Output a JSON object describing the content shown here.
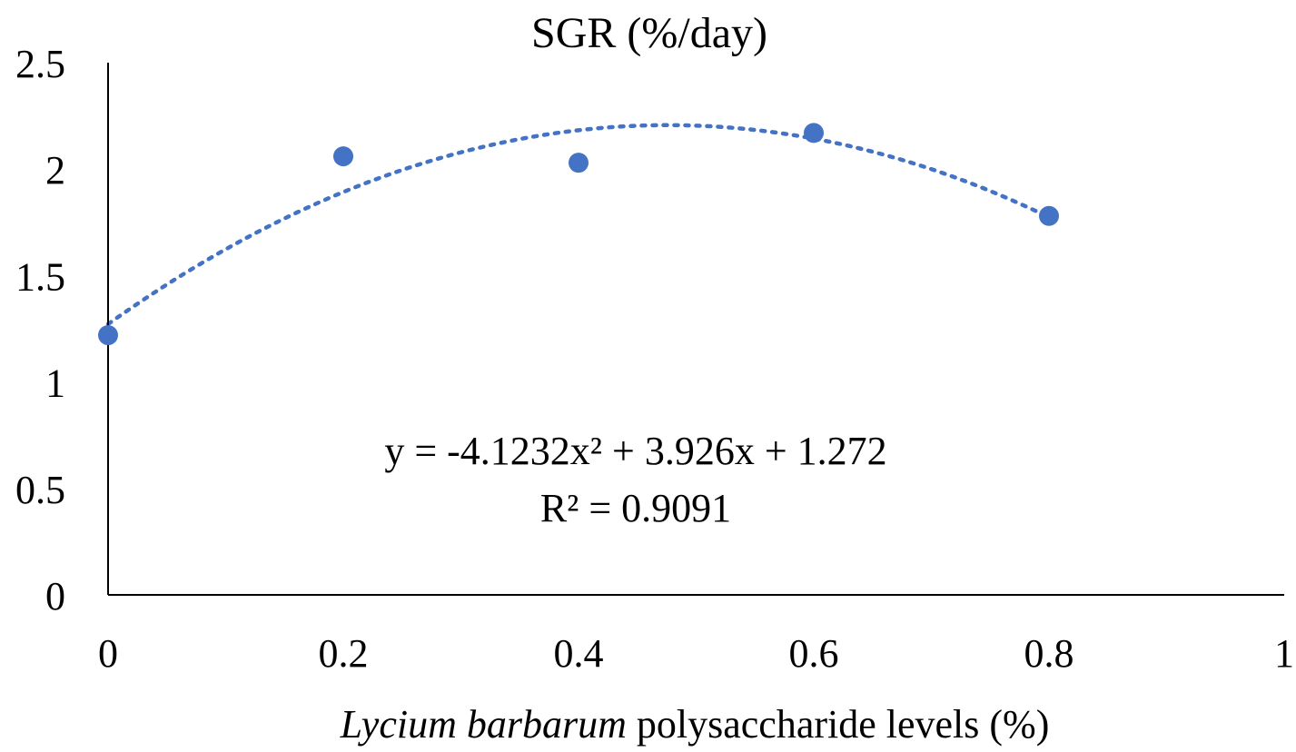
{
  "chart_data": {
    "type": "scatter",
    "title": "SGR (%/day)",
    "xlabel_italic": "Lycium barbarum",
    "xlabel_rest": " polysaccharide levels (%)",
    "xlim": [
      0,
      1
    ],
    "ylim": [
      0,
      2.5
    ],
    "x_ticks": [
      "0",
      "0.2",
      "0.4",
      "0.6",
      "0.8",
      "1"
    ],
    "y_ticks": [
      "0",
      "0.5",
      "1",
      "1.5",
      "2",
      "2.5"
    ],
    "grid": false,
    "legend": "none",
    "series": [
      {
        "x": [
          0,
          0.2,
          0.4,
          0.6,
          0.8
        ],
        "y": [
          1.22,
          2.06,
          2.03,
          2.17,
          1.78
        ],
        "color": "#4472C4"
      }
    ],
    "trendline": {
      "kind": "polynomial",
      "coefficients": {
        "a": -4.1232,
        "b": 3.926,
        "c": 1.272
      },
      "x_range": [
        0,
        0.8
      ],
      "style": "dotted",
      "color": "#4472C4",
      "equation_text": "y = -4.1232x² + 3.926x + 1.272",
      "r2_text": "R² = 0.9091"
    }
  }
}
